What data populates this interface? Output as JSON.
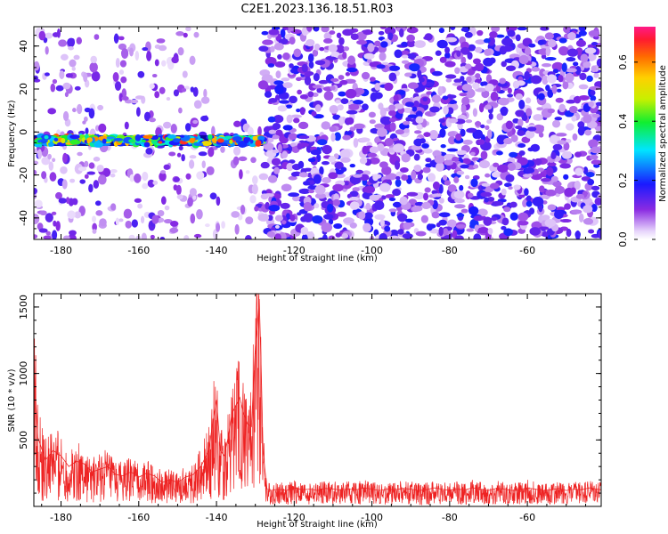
{
  "chart_data": [
    {
      "type": "heatmap",
      "title": "C2E1.2023.136.18.51.R03",
      "xlabel": "Height of straight line (km)",
      "ylabel": "Frequency (Hz)",
      "xlim": [
        -187,
        -41
      ],
      "ylim": [
        -50,
        49
      ],
      "x_ticks": [
        -180,
        -160,
        -140,
        -120,
        -100,
        -80,
        -60
      ],
      "y_ticks": [
        -40,
        -20,
        0,
        20,
        40
      ],
      "colorbar": {
        "label": "Normalized spectral amplitude",
        "range": [
          0.0,
          0.72
        ],
        "ticks": [
          0.0,
          0.2,
          0.4,
          0.6
        ]
      },
      "features": [
        {
          "description": "strong narrow-band signal near 0 Hz",
          "x_range": [
            -187,
            -128
          ],
          "freq_hz": -4,
          "amplitude_peak": 0.7
        },
        {
          "description": "gap with no data",
          "x_range": [
            -142,
            -128
          ],
          "freq_range": [
            5,
            49
          ]
        },
        {
          "description": "broadband noise",
          "x_range": [
            -128,
            -41
          ],
          "freq_range": [
            -50,
            49
          ],
          "amplitude_typical": 0.15
        }
      ]
    },
    {
      "type": "line",
      "title": "",
      "xlabel": "Height of straight line (km)",
      "ylabel": "SNR (10 * v/v)",
      "xlim": [
        -187,
        -41
      ],
      "ylim": [
        0,
        1600
      ],
      "x_ticks": [
        -180,
        -160,
        -140,
        -120,
        -100,
        -80,
        -60
      ],
      "y_ticks": [
        500,
        1000,
        1500
      ],
      "series": [
        {
          "name": "SNR",
          "color": "#ee2222",
          "x": [
            -187,
            -186,
            -184,
            -182,
            -180,
            -178,
            -176,
            -174,
            -172,
            -170,
            -168,
            -166,
            -164,
            -162,
            -160,
            -158,
            -156,
            -154,
            -152,
            -150,
            -148,
            -146,
            -144,
            -142,
            -141,
            -140,
            -139,
            -138,
            -137,
            -136,
            -135,
            -134,
            -133,
            -132,
            -131,
            -130,
            -129.5,
            -129,
            -128.5,
            -128,
            -127,
            -126,
            -124,
            -122,
            -120,
            -118,
            -116,
            -114,
            -112,
            -110,
            -108,
            -106,
            -104,
            -102,
            -100,
            -98,
            -96,
            -94,
            -92,
            -90,
            -88,
            -86,
            -84,
            -82,
            -80,
            -78,
            -76,
            -74,
            -72,
            -70,
            -68,
            -66,
            -64,
            -62,
            -60,
            -58,
            -56,
            -54,
            -52,
            -50,
            -48,
            -46,
            -44,
            -42,
            -41
          ],
          "values": [
            1050,
            520,
            350,
            420,
            380,
            300,
            340,
            320,
            260,
            280,
            300,
            240,
            230,
            260,
            220,
            250,
            230,
            180,
            200,
            180,
            220,
            240,
            300,
            420,
            620,
            800,
            420,
            380,
            520,
            700,
            760,
            820,
            700,
            620,
            600,
            1200,
            1350,
            1560,
            1050,
            400,
            130,
            120,
            130,
            120,
            140,
            125,
            130,
            120,
            135,
            130,
            125,
            130,
            125,
            140,
            130,
            120,
            130,
            125,
            135,
            130,
            120,
            125,
            140,
            130,
            120,
            130,
            125,
            140,
            130,
            120,
            135,
            130,
            120,
            125,
            140,
            130,
            120,
            125,
            135,
            120,
            130,
            125,
            140,
            130,
            125
          ]
        }
      ]
    }
  ],
  "colors": {
    "line": "#ee2222",
    "axis": "#000000",
    "background": "#ffffff"
  }
}
